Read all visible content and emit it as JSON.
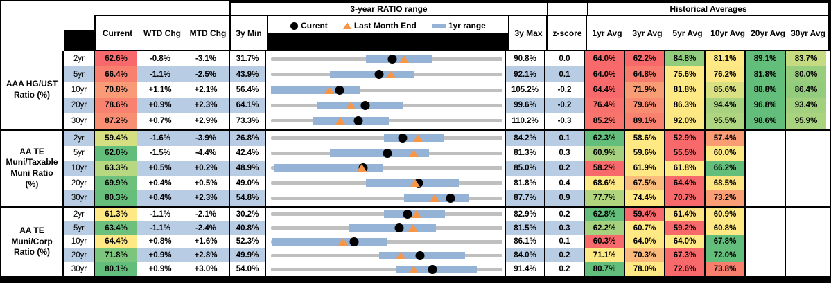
{
  "header": {
    "chart_title": "3-year RATIO range",
    "hist_title": "Historical Averages",
    "current": "Current",
    "wtd": "WTD Chg",
    "mtd": "MTD Chg",
    "min": "3y Min",
    "max": "3y Max",
    "z": "z-score",
    "avg_cols": [
      "1yr Avg",
      "3yr Avg",
      "5yr Avg",
      "10yr Avg",
      "20yr Avg",
      "30yr Avg"
    ]
  },
  "legend": {
    "current": "Curent",
    "lme": "Last Month End",
    "range": "1yr range"
  },
  "colors": {
    "stripe_blue": "#B8CCE4",
    "track_gray": "#BFBFBF",
    "band_blue": "#95B3D7",
    "marker_orange": "#F79646",
    "marker_black": "#000000",
    "scale_red": "#F8696B",
    "scale_yellow": "#FFE984",
    "scale_green": "#63BE7B"
  },
  "chart_data": {
    "type": "table",
    "embedded_chart": {
      "type": "range-dot",
      "title": "3-year RATIO range",
      "legend": [
        "Curent (dot)",
        "Last Month End (triangle)",
        "1yr range (bar)"
      ],
      "note": "per-row horizontal range: gray = 3y min..max, blue = 1yr range, dot = current, triangle = last month end"
    },
    "groups": [
      {
        "label": "AAA HG/UST\nRatio (%)",
        "rows": [
          {
            "tenor": "2yr",
            "current": "62.6%",
            "current_bg": "#F8696B",
            "wtd": "-0.8%",
            "mtd": "-3.1%",
            "min": "31.7%",
            "max": "90.8%",
            "z": "0.0",
            "min_v": 31.7,
            "max_v": 90.8,
            "current_v": 62.6,
            "lme_v": 65.7,
            "band_lo_v": 55.9,
            "band_hi_v": 72.7,
            "avgs": [
              {
                "text": "64.0%",
                "bg": "#F8696B"
              },
              {
                "text": "62.2%",
                "bg": "#F8696B"
              },
              {
                "text": "84.8%",
                "bg": "#90CB7E"
              },
              {
                "text": "81.1%",
                "bg": "#FFE984"
              },
              {
                "text": "89.1%",
                "bg": "#63BE7B"
              },
              {
                "text": "83.7%",
                "bg": "#C6DB81"
              }
            ]
          },
          {
            "tenor": "5yr",
            "current": "66.4%",
            "current_bg": "#F8806F",
            "wtd": "-1.1%",
            "mtd": "-2.5%",
            "min": "43.9%",
            "max": "92.1%",
            "z": "0.1",
            "min_v": 43.9,
            "max_v": 92.1,
            "current_v": 66.4,
            "lme_v": 68.9,
            "band_lo_v": 56.2,
            "band_hi_v": 73.8,
            "avgs": [
              {
                "text": "64.0%",
                "bg": "#F8696B"
              },
              {
                "text": "64.8%",
                "bg": "#F87C6E"
              },
              {
                "text": "75.6%",
                "bg": "#FFE984"
              },
              {
                "text": "76.2%",
                "bg": "#FBE783"
              },
              {
                "text": "81.8%",
                "bg": "#63BE7B"
              },
              {
                "text": "80.0%",
                "bg": "#98CD7E"
              }
            ]
          },
          {
            "tenor": "10yr",
            "current": "70.8%",
            "current_bg": "#F99B76",
            "wtd": "+1.1%",
            "mtd": "+2.1%",
            "min": "56.4%",
            "max": "105.2%",
            "z": "-0.2",
            "min_v": 56.4,
            "max_v": 105.2,
            "current_v": 70.8,
            "lme_v": 68.7,
            "band_lo_v": 56.4,
            "band_hi_v": 75.2,
            "avgs": [
              {
                "text": "64.4%",
                "bg": "#F8696B"
              },
              {
                "text": "71.9%",
                "bg": "#F99D75"
              },
              {
                "text": "81.8%",
                "bg": "#FFE984"
              },
              {
                "text": "85.6%",
                "bg": "#D9E082"
              },
              {
                "text": "88.8%",
                "bg": "#63BE7B"
              },
              {
                "text": "86.4%",
                "bg": "#94CC7E"
              }
            ]
          },
          {
            "tenor": "20yr",
            "current": "78.6%",
            "current_bg": "#F8826F",
            "wtd": "+0.9%",
            "mtd": "+2.3%",
            "min": "64.1%",
            "max": "99.6%",
            "z": "-0.2",
            "min_v": 64.1,
            "max_v": 99.6,
            "current_v": 78.6,
            "lme_v": 76.3,
            "band_lo_v": 71.1,
            "band_hi_v": 84.3,
            "avgs": [
              {
                "text": "76.4%",
                "bg": "#F8716C"
              },
              {
                "text": "79.6%",
                "bg": "#F88D71"
              },
              {
                "text": "86.3%",
                "bg": "#FEE883"
              },
              {
                "text": "94.4%",
                "bg": "#A8D27F"
              },
              {
                "text": "96.8%",
                "bg": "#63BE7B"
              },
              {
                "text": "93.4%",
                "bg": "#A2D07F"
              }
            ]
          },
          {
            "tenor": "30yr",
            "current": "87.2%",
            "current_bg": "#F88F72",
            "wtd": "+0.7%",
            "mtd": "+2.9%",
            "min": "73.3%",
            "max": "110.2%",
            "z": "-0.3",
            "min_v": 73.3,
            "max_v": 110.2,
            "current_v": 87.2,
            "lme_v": 84.3,
            "band_lo_v": 80.0,
            "band_hi_v": 92.1,
            "avgs": [
              {
                "text": "85.2%",
                "bg": "#F8746D"
              },
              {
                "text": "89.1%",
                "bg": "#F8816F"
              },
              {
                "text": "92.0%",
                "bg": "#FBE783"
              },
              {
                "text": "95.5%",
                "bg": "#B0D580"
              },
              {
                "text": "98.6%",
                "bg": "#63BE7B"
              },
              {
                "text": "95.9%",
                "bg": "#A9D37F"
              }
            ]
          }
        ]
      },
      {
        "label": "AA TE\nMuni/Taxable\nMuni Ratio\n(%)",
        "rows": [
          {
            "tenor": "2yr",
            "current": "59.4%",
            "current_bg": "#D5DF81",
            "wtd": "-1.6%",
            "mtd": "-3.9%",
            "min": "26.8%",
            "max": "84.2%",
            "z": "0.1",
            "min_v": 26.8,
            "max_v": 84.2,
            "current_v": 59.4,
            "lme_v": 63.3,
            "band_lo_v": 54.8,
            "band_hi_v": 69.6,
            "avgs": [
              {
                "text": "62.3%",
                "bg": "#63BE7B"
              },
              {
                "text": "58.6%",
                "bg": "#FFE984"
              },
              {
                "text": "52.9%",
                "bg": "#F8696B"
              },
              {
                "text": "57.4%",
                "bg": "#FA9C74"
              },
              {
                "text": "",
                "bg": ""
              },
              {
                "text": "",
                "bg": ""
              }
            ]
          },
          {
            "tenor": "5yr",
            "current": "62.0%",
            "current_bg": "#63BE7B",
            "wtd": "-1.5%",
            "mtd": "-4.4%",
            "min": "42.4%",
            "max": "81.3%",
            "z": "0.3",
            "min_v": 42.4,
            "max_v": 81.3,
            "current_v": 62.0,
            "lme_v": 66.4,
            "band_lo_v": 52.3,
            "band_hi_v": 69.0,
            "avgs": [
              {
                "text": "60.9%",
                "bg": "#A5D17F"
              },
              {
                "text": "59.6%",
                "bg": "#FFE984"
              },
              {
                "text": "55.5%",
                "bg": "#F8696B"
              },
              {
                "text": "60.0%",
                "bg": "#FFE984"
              },
              {
                "text": "",
                "bg": ""
              },
              {
                "text": "",
                "bg": ""
              }
            ]
          },
          {
            "tenor": "10yr",
            "current": "63.3%",
            "current_bg": "#B7D780",
            "wtd": "+0.5%",
            "mtd": "+0.2%",
            "min": "48.9%",
            "max": "85.0%",
            "z": "0.2",
            "min_v": 48.9,
            "max_v": 85.0,
            "current_v": 63.3,
            "lme_v": 63.1,
            "band_lo_v": 49.4,
            "band_hi_v": 66.4,
            "avgs": [
              {
                "text": "58.2%",
                "bg": "#F8696B"
              },
              {
                "text": "61.9%",
                "bg": "#FFE984"
              },
              {
                "text": "61.8%",
                "bg": "#FFE984"
              },
              {
                "text": "66.2%",
                "bg": "#63BE7B"
              },
              {
                "text": "",
                "bg": ""
              },
              {
                "text": "",
                "bg": ""
              }
            ]
          },
          {
            "tenor": "20yr",
            "current": "69.9%",
            "current_bg": "#6EC17C",
            "wtd": "+0.4%",
            "mtd": "+0.5%",
            "min": "49.0%",
            "max": "81.8%",
            "z": "0.4",
            "min_v": 49.0,
            "max_v": 81.8,
            "current_v": 69.9,
            "lme_v": 69.4,
            "band_lo_v": 62.5,
            "band_hi_v": 75.6,
            "avgs": [
              {
                "text": "68.6%",
                "bg": "#FFE984"
              },
              {
                "text": "67.5%",
                "bg": "#FBBD7C"
              },
              {
                "text": "64.4%",
                "bg": "#F8696B"
              },
              {
                "text": "68.5%",
                "bg": "#FDE583"
              },
              {
                "text": "",
                "bg": ""
              },
              {
                "text": "",
                "bg": ""
              }
            ]
          },
          {
            "tenor": "30yr",
            "current": "80.3%",
            "current_bg": "#65BF7B",
            "wtd": "+0.4%",
            "mtd": "+2.3%",
            "min": "54.8%",
            "max": "87.7%",
            "z": "0.9",
            "min_v": 54.8,
            "max_v": 87.7,
            "current_v": 80.3,
            "lme_v": 78.0,
            "band_lo_v": 73.7,
            "band_hi_v": 82.9,
            "avgs": [
              {
                "text": "77.7%",
                "bg": "#B1D57F"
              },
              {
                "text": "74.4%",
                "bg": "#FFE984"
              },
              {
                "text": "70.7%",
                "bg": "#F8696B"
              },
              {
                "text": "73.2%",
                "bg": "#FA9E75"
              },
              {
                "text": "",
                "bg": ""
              },
              {
                "text": "",
                "bg": ""
              }
            ]
          }
        ]
      },
      {
        "label": "AA TE\nMuni/Corp\nRatio (%)",
        "rows": [
          {
            "tenor": "2yr",
            "current": "61.3%",
            "current_bg": "#FFE984",
            "wtd": "-1.1%",
            "mtd": "-2.1%",
            "min": "30.2%",
            "max": "82.9%",
            "z": "0.2",
            "min_v": 30.2,
            "max_v": 82.9,
            "current_v": 61.3,
            "lme_v": 63.4,
            "band_lo_v": 55.9,
            "band_hi_v": 69.8,
            "avgs": [
              {
                "text": "62.8%",
                "bg": "#63BE7B"
              },
              {
                "text": "59.4%",
                "bg": "#F8696B"
              },
              {
                "text": "61.4%",
                "bg": "#FCE283"
              },
              {
                "text": "60.9%",
                "bg": "#FFE984"
              },
              {
                "text": "",
                "bg": ""
              },
              {
                "text": "",
                "bg": ""
              }
            ]
          },
          {
            "tenor": "5yr",
            "current": "63.4%",
            "current_bg": "#6CC07C",
            "wtd": "-1.1%",
            "mtd": "-2.4%",
            "min": "40.8%",
            "max": "81.5%",
            "z": "0.3",
            "min_v": 40.8,
            "max_v": 81.5,
            "current_v": 63.4,
            "lme_v": 65.8,
            "band_lo_v": 54.6,
            "band_hi_v": 69.8,
            "avgs": [
              {
                "text": "62.2%",
                "bg": "#A6D27F"
              },
              {
                "text": "60.7%",
                "bg": "#FFE984"
              },
              {
                "text": "59.2%",
                "bg": "#F8696B"
              },
              {
                "text": "60.8%",
                "bg": "#FFE984"
              },
              {
                "text": "",
                "bg": ""
              },
              {
                "text": "",
                "bg": ""
              }
            ]
          },
          {
            "tenor": "10yr",
            "current": "64.4%",
            "current_bg": "#FFE984",
            "wtd": "+0.8%",
            "mtd": "+1.6%",
            "min": "52.3%",
            "max": "86.1%",
            "z": "0.1",
            "min_v": 52.3,
            "max_v": 86.1,
            "current_v": 64.4,
            "lme_v": 62.8,
            "band_lo_v": 52.5,
            "band_hi_v": 69.3,
            "avgs": [
              {
                "text": "60.3%",
                "bg": "#F8696B"
              },
              {
                "text": "64.0%",
                "bg": "#FFE984"
              },
              {
                "text": "64.0%",
                "bg": "#FFE984"
              },
              {
                "text": "67.8%",
                "bg": "#63BE7B"
              },
              {
                "text": "",
                "bg": ""
              },
              {
                "text": "",
                "bg": ""
              }
            ]
          },
          {
            "tenor": "20yr",
            "current": "71.8%",
            "current_bg": "#7CC57D",
            "wtd": "+0.9%",
            "mtd": "+2.8%",
            "min": "49.9%",
            "max": "84.0%",
            "z": "0.2",
            "min_v": 49.9,
            "max_v": 84.0,
            "current_v": 71.8,
            "lme_v": 69.0,
            "band_lo_v": 65.8,
            "band_hi_v": 78.5,
            "avgs": [
              {
                "text": "71.1%",
                "bg": "#FFE984"
              },
              {
                "text": "70.3%",
                "bg": "#FBB97B"
              },
              {
                "text": "67.3%",
                "bg": "#F8696B"
              },
              {
                "text": "72.0%",
                "bg": "#63BE7B"
              },
              {
                "text": "",
                "bg": ""
              },
              {
                "text": "",
                "bg": ""
              }
            ]
          },
          {
            "tenor": "30yr",
            "current": "80.1%",
            "current_bg": "#63BE7B",
            "wtd": "+0.9%",
            "mtd": "+3.0%",
            "min": "54.0%",
            "max": "91.4%",
            "z": "0.2",
            "min_v": 54.0,
            "max_v": 91.4,
            "current_v": 80.1,
            "lme_v": 77.1,
            "band_lo_v": 74.2,
            "band_hi_v": 87.3,
            "avgs": [
              {
                "text": "80.7%",
                "bg": "#63BE7B"
              },
              {
                "text": "78.0%",
                "bg": "#FFE984"
              },
              {
                "text": "72.6%",
                "bg": "#F8696B"
              },
              {
                "text": "73.8%",
                "bg": "#F87E6E"
              },
              {
                "text": "",
                "bg": ""
              },
              {
                "text": "",
                "bg": ""
              }
            ]
          }
        ]
      }
    ]
  }
}
